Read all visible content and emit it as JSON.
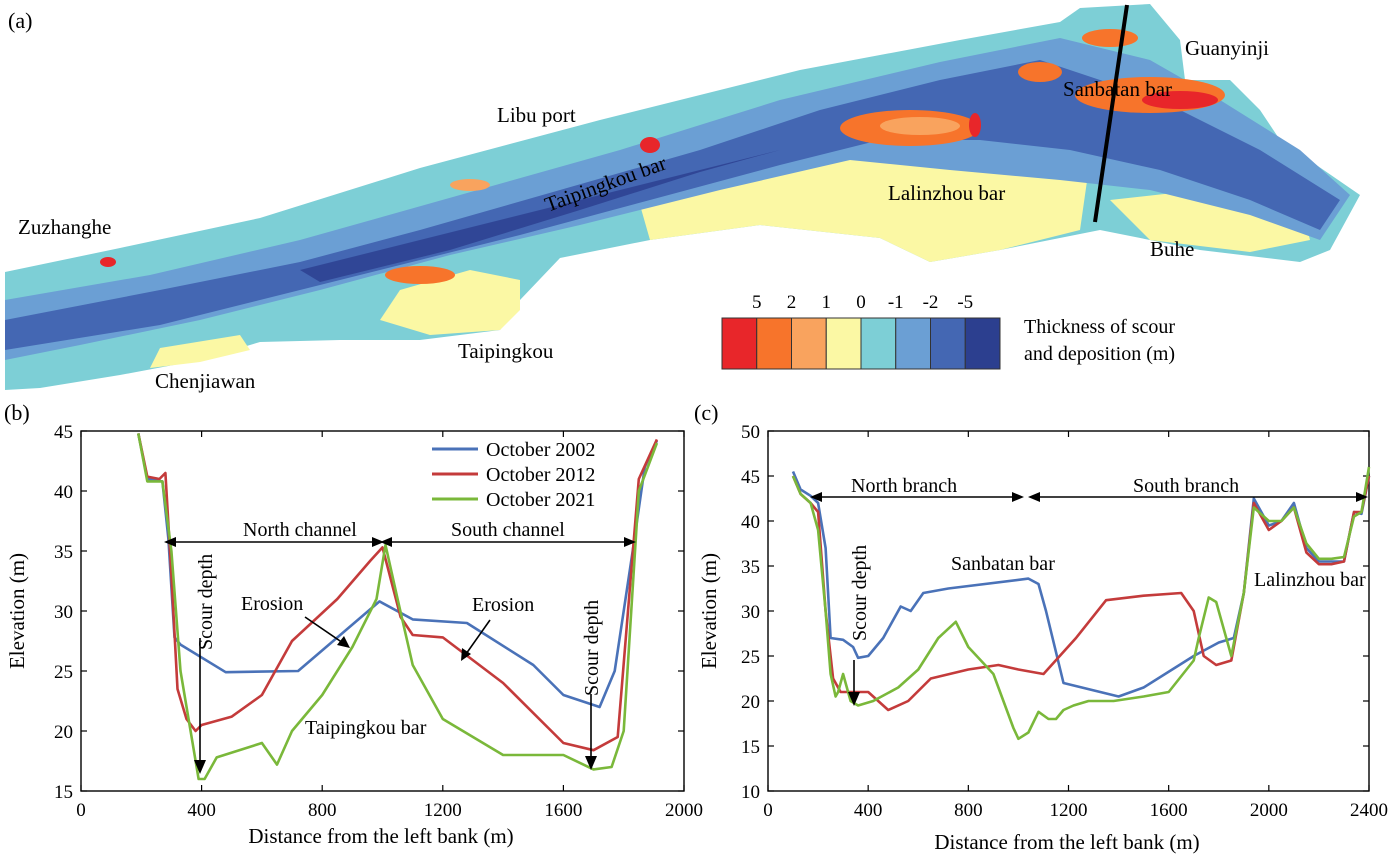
{
  "panels": {
    "a": "(a)",
    "b": "(b)",
    "c": "(c)"
  },
  "map": {
    "places": {
      "zuzhanghe": "Zuzhanghe",
      "libu": "Libu port",
      "guanyinji": "Guanyinji",
      "sanbatan": "Sanbatan bar",
      "taipingkou_bar": "Taipingkou bar",
      "lalinzhou": "Lalinzhou bar",
      "buhe": "Buhe",
      "taipingkou": "Taipingkou",
      "chenjiawan": "Chenjiawan"
    },
    "colorbar": {
      "labels": [
        "5",
        "2",
        "1",
        "0",
        "-1",
        "-2",
        "-5"
      ],
      "colors": [
        "#e8262a",
        "#f7742b",
        "#f9a35e",
        "#fbf8a4",
        "#7dcfd6",
        "#6b9fd4",
        "#4467b3",
        "#2c3f8f"
      ],
      "title_line1": "Thickness of scour",
      "title_line2": "and deposition (m)"
    }
  },
  "chart_data": [
    {
      "type": "line",
      "panel": "(b)",
      "xlabel": "Distance from the left bank (m)",
      "ylabel": "Elevation (m)",
      "xlim": [
        0,
        2000
      ],
      "ylim": [
        15,
        45
      ],
      "xticks": [
        "0",
        "400",
        "800",
        "1200",
        "1600",
        "2000"
      ],
      "yticks": [
        "15",
        "20",
        "25",
        "30",
        "35",
        "40",
        "45"
      ],
      "legend_position": "top-right",
      "series": [
        {
          "name": "October 2002",
          "color": "#4a72b8",
          "x": [
            190,
            220,
            270,
            290,
            310,
            330,
            480,
            720,
            990,
            1100,
            1280,
            1500,
            1600,
            1720,
            1770,
            1830,
            1870,
            1910
          ],
          "y": [
            44.8,
            41.0,
            40.8,
            36.0,
            27.8,
            27.2,
            24.9,
            25.0,
            30.8,
            29.3,
            29.0,
            25.5,
            23.0,
            22.0,
            25.0,
            35.0,
            42.0,
            44.2
          ]
        },
        {
          "name": "October 2012",
          "color": "#c43b3b",
          "x": [
            190,
            220,
            260,
            280,
            300,
            320,
            350,
            380,
            400,
            500,
            600,
            700,
            850,
            960,
            1000,
            1060,
            1100,
            1200,
            1400,
            1600,
            1700,
            1780,
            1850,
            1910
          ],
          "y": [
            44.8,
            41.2,
            41.0,
            41.5,
            33.0,
            23.5,
            21.0,
            20.0,
            20.5,
            21.2,
            23.0,
            27.5,
            31.0,
            34.2,
            35.3,
            29.5,
            28.0,
            27.8,
            24.0,
            19.0,
            18.4,
            19.5,
            41.0,
            44.3
          ]
        },
        {
          "name": "October 2021",
          "color": "#7ab83a",
          "x": [
            190,
            220,
            270,
            300,
            330,
            370,
            390,
            410,
            450,
            600,
            650,
            700,
            800,
            900,
            980,
            1010,
            1050,
            1100,
            1200,
            1400,
            1600,
            1700,
            1760,
            1800,
            1850,
            1910
          ],
          "y": [
            44.8,
            40.8,
            40.8,
            35.0,
            25.0,
            19.0,
            16.0,
            16.0,
            17.8,
            19.0,
            17.2,
            20.0,
            23.0,
            27.0,
            31.0,
            35.5,
            31.0,
            25.5,
            21.0,
            18.0,
            18.0,
            16.8,
            17.0,
            20.0,
            40.0,
            44.0
          ]
        }
      ],
      "annotations": {
        "north_channel": "North channel",
        "south_channel": "South channel",
        "erosion1": "Erosion",
        "erosion2": "Erosion",
        "scour1": "Scour depth",
        "scour2": "Scour depth",
        "bar": "Taipingkou bar"
      }
    },
    {
      "type": "line",
      "panel": "(c)",
      "xlabel": "Distance from the left bank (m)",
      "ylabel": "Elevation (m)",
      "xlim": [
        0,
        2400
      ],
      "ylim": [
        10,
        50
      ],
      "xticks": [
        "0",
        "400",
        "800",
        "1200",
        "1600",
        "2000",
        "2400"
      ],
      "yticks": [
        "10",
        "15",
        "20",
        "25",
        "30",
        "35",
        "40",
        "45",
        "50"
      ],
      "series": [
        {
          "color": "#4a72b8",
          "x": [
            100,
            130,
            170,
            200,
            230,
            250,
            300,
            340,
            360,
            400,
            460,
            530,
            570,
            620,
            720,
            1040,
            1080,
            1110,
            1180,
            1400,
            1500,
            1700,
            1800,
            1860,
            1900,
            1940,
            2000,
            2050,
            2100,
            2150,
            2200,
            2250,
            2300,
            2340,
            2370,
            2400
          ],
          "y": [
            45.5,
            43.5,
            42.8,
            42.0,
            37.0,
            27.0,
            26.8,
            26.0,
            24.8,
            25.0,
            27.0,
            30.5,
            30.0,
            32.0,
            32.5,
            33.6,
            33.0,
            30.0,
            22.0,
            20.5,
            21.5,
            25.0,
            26.5,
            27.0,
            32.0,
            42.5,
            39.5,
            40.0,
            42.0,
            37.0,
            35.5,
            35.5,
            35.5,
            41.0,
            40.8,
            45.0
          ]
        },
        {
          "color": "#c43b3b",
          "x": [
            100,
            130,
            170,
            200,
            230,
            260,
            290,
            340,
            400,
            480,
            560,
            650,
            800,
            920,
            1000,
            1100,
            1230,
            1350,
            1500,
            1650,
            1700,
            1740,
            1790,
            1850,
            1900,
            1940,
            2000,
            2050,
            2100,
            2150,
            2200,
            2250,
            2300,
            2340,
            2370,
            2400
          ],
          "y": [
            45.0,
            43.0,
            42.0,
            41.0,
            30.0,
            22.5,
            21.0,
            21.0,
            21.0,
            19.0,
            20.0,
            22.5,
            23.5,
            24.0,
            23.5,
            23.0,
            27.0,
            31.2,
            31.7,
            32.0,
            30.0,
            25.0,
            24.0,
            24.5,
            32.0,
            42.0,
            39.0,
            40.0,
            41.5,
            36.5,
            35.2,
            35.2,
            35.5,
            41.0,
            41.0,
            45.0
          ]
        },
        {
          "color": "#7ab83a",
          "x": [
            100,
            130,
            170,
            200,
            230,
            250,
            270,
            280,
            300,
            330,
            360,
            420,
            520,
            600,
            680,
            750,
            800,
            850,
            900,
            940,
            980,
            1000,
            1040,
            1080,
            1120,
            1150,
            1180,
            1220,
            1280,
            1380,
            1500,
            1600,
            1700,
            1720,
            1760,
            1790,
            1850,
            1900,
            1940,
            2000,
            2050,
            2100,
            2150,
            2200,
            2250,
            2300,
            2340,
            2370,
            2400
          ],
          "y": [
            45.0,
            43.0,
            42.0,
            39.0,
            30.0,
            23.0,
            20.5,
            21.0,
            23.0,
            20.0,
            19.5,
            20.0,
            21.5,
            23.5,
            27.0,
            28.8,
            26.0,
            24.5,
            23.0,
            20.0,
            17.0,
            15.8,
            16.5,
            18.8,
            18.0,
            18.0,
            19.0,
            19.5,
            20.0,
            20.0,
            20.5,
            21.0,
            24.5,
            27.0,
            31.5,
            31.0,
            25.0,
            32.0,
            41.5,
            40.0,
            40.0,
            41.5,
            37.5,
            35.8,
            35.8,
            36.0,
            40.5,
            41.0,
            46.0
          ]
        }
      ],
      "annotations": {
        "north_branch": "North branch",
        "south_branch": "South branch",
        "sanbatan": "Sanbatan bar",
        "scour": "Scour depth",
        "lalinzhou": "Lalinzhou bar"
      }
    }
  ]
}
